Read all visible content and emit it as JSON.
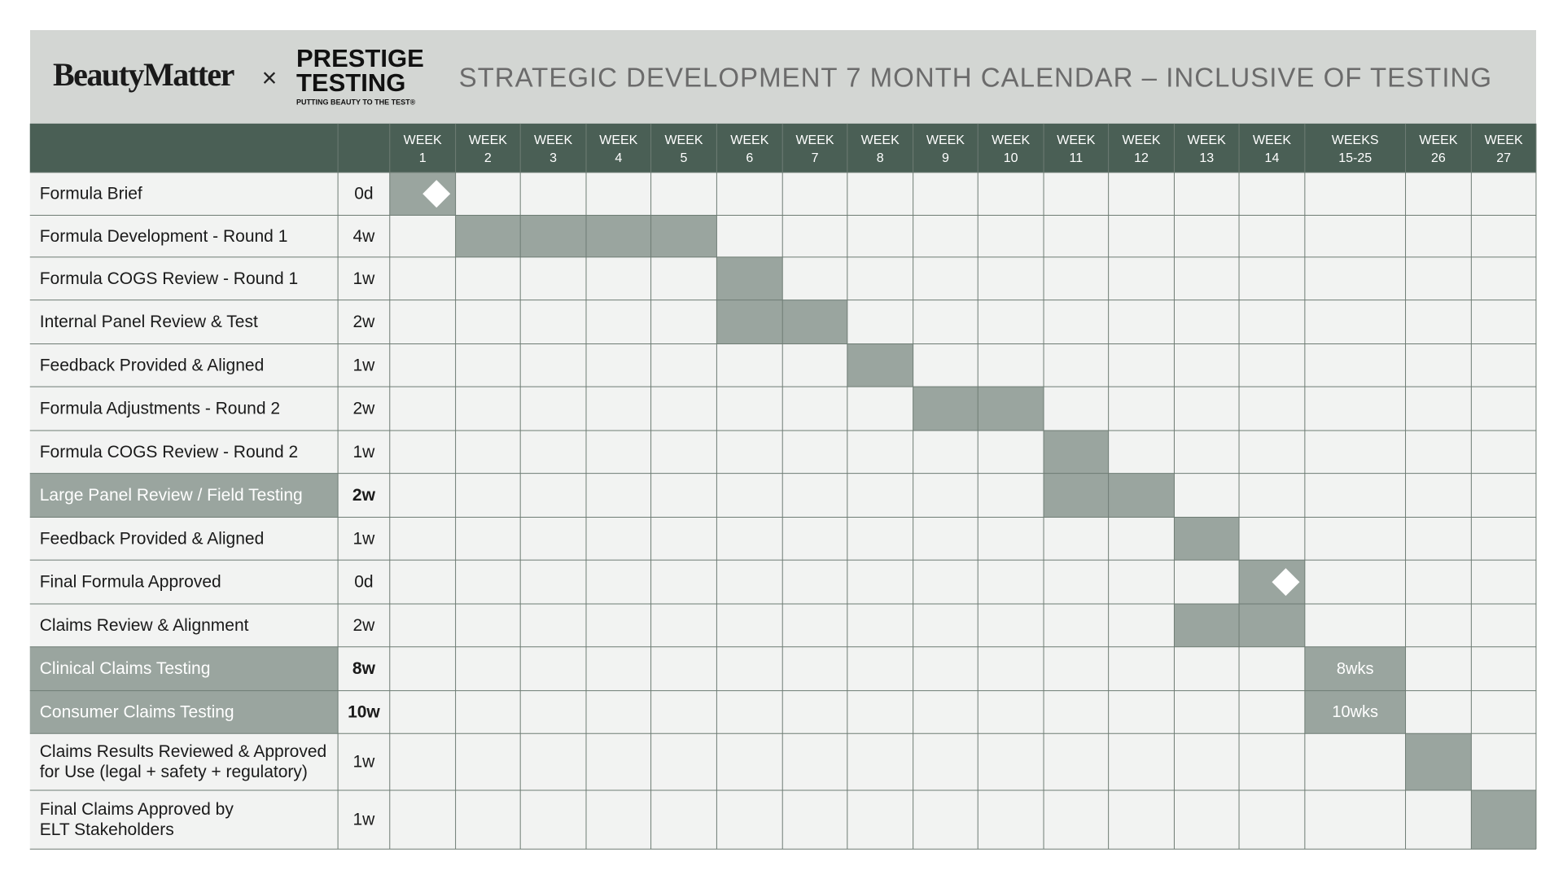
{
  "header": {
    "brand": "BeautyMatter",
    "cross": "×",
    "partner_line1": "PRESTIGE",
    "partner_line2": "TESTING",
    "partner_tagline": "PUTTING BEAUTY TO THE TEST®",
    "title": "STRATEGIC DEVELOPMENT 7 MONTH CALENDAR – INCLUSIVE OF TESTING"
  },
  "columns": [
    [
      "WEEK",
      "1"
    ],
    [
      "WEEK",
      "2"
    ],
    [
      "WEEK",
      "3"
    ],
    [
      "WEEK",
      "4"
    ],
    [
      "WEEK",
      "5"
    ],
    [
      "WEEK",
      "6"
    ],
    [
      "WEEK",
      "7"
    ],
    [
      "WEEK",
      "8"
    ],
    [
      "WEEK",
      "9"
    ],
    [
      "WEEK",
      "10"
    ],
    [
      "WEEK",
      "11"
    ],
    [
      "WEEK",
      "12"
    ],
    [
      "WEEK",
      "13"
    ],
    [
      "WEEK",
      "14"
    ],
    [
      "WEEKS",
      "15-25"
    ],
    [
      "WEEK",
      "26"
    ],
    [
      "WEEK",
      "27"
    ]
  ],
  "tasks": [
    {
      "label": [
        "Formula Brief"
      ],
      "duration": "0d",
      "cols": [
        0,
        0
      ],
      "milestone": true
    },
    {
      "label": [
        "Formula Development - Round 1"
      ],
      "duration": "4w",
      "cols": [
        1,
        4
      ]
    },
    {
      "label": [
        "Formula COGS Review - Round 1"
      ],
      "duration": "1w",
      "cols": [
        5,
        5
      ]
    },
    {
      "label": [
        "Internal Panel Review & Test"
      ],
      "duration": "2w",
      "cols": [
        5,
        6
      ]
    },
    {
      "label": [
        "Feedback Provided & Aligned"
      ],
      "duration": "1w",
      "cols": [
        7,
        7
      ]
    },
    {
      "label": [
        "Formula Adjustments - Round 2"
      ],
      "duration": "2w",
      "cols": [
        8,
        9
      ]
    },
    {
      "label": [
        "Formula COGS Review - Round 2"
      ],
      "duration": "1w",
      "cols": [
        10,
        10
      ]
    },
    {
      "label": [
        "Large Panel Review  / Field Testing"
      ],
      "duration": "2w",
      "cols": [
        10,
        11
      ],
      "highlight": true
    },
    {
      "label": [
        "Feedback Provided & Aligned"
      ],
      "duration": "1w",
      "cols": [
        12,
        12
      ]
    },
    {
      "label": [
        "Final Formula Approved"
      ],
      "duration": "0d",
      "cols": [
        13,
        13
      ],
      "milestone": true
    },
    {
      "label": [
        "Claims Review & Alignment"
      ],
      "duration": "2w",
      "cols": [
        12,
        13
      ]
    },
    {
      "label": [
        "Clinical Claims Testing"
      ],
      "duration": "8w",
      "cols": [
        14,
        14
      ],
      "highlight": true,
      "bar_label": "8wks"
    },
    {
      "label": [
        "Consumer Claims Testing"
      ],
      "duration": "10w",
      "cols": [
        14,
        14
      ],
      "highlight": true,
      "bar_label": "10wks"
    },
    {
      "label": [
        "Claims Results Reviewed & Approved",
        "for Use (legal + safety + regulatory)"
      ],
      "duration": "1w",
      "cols": [
        15,
        15
      ]
    },
    {
      "label": [
        "Final Claims Approved by",
        "ELT Stakeholders"
      ],
      "duration": "1w",
      "cols": [
        16,
        16
      ]
    }
  ]
}
